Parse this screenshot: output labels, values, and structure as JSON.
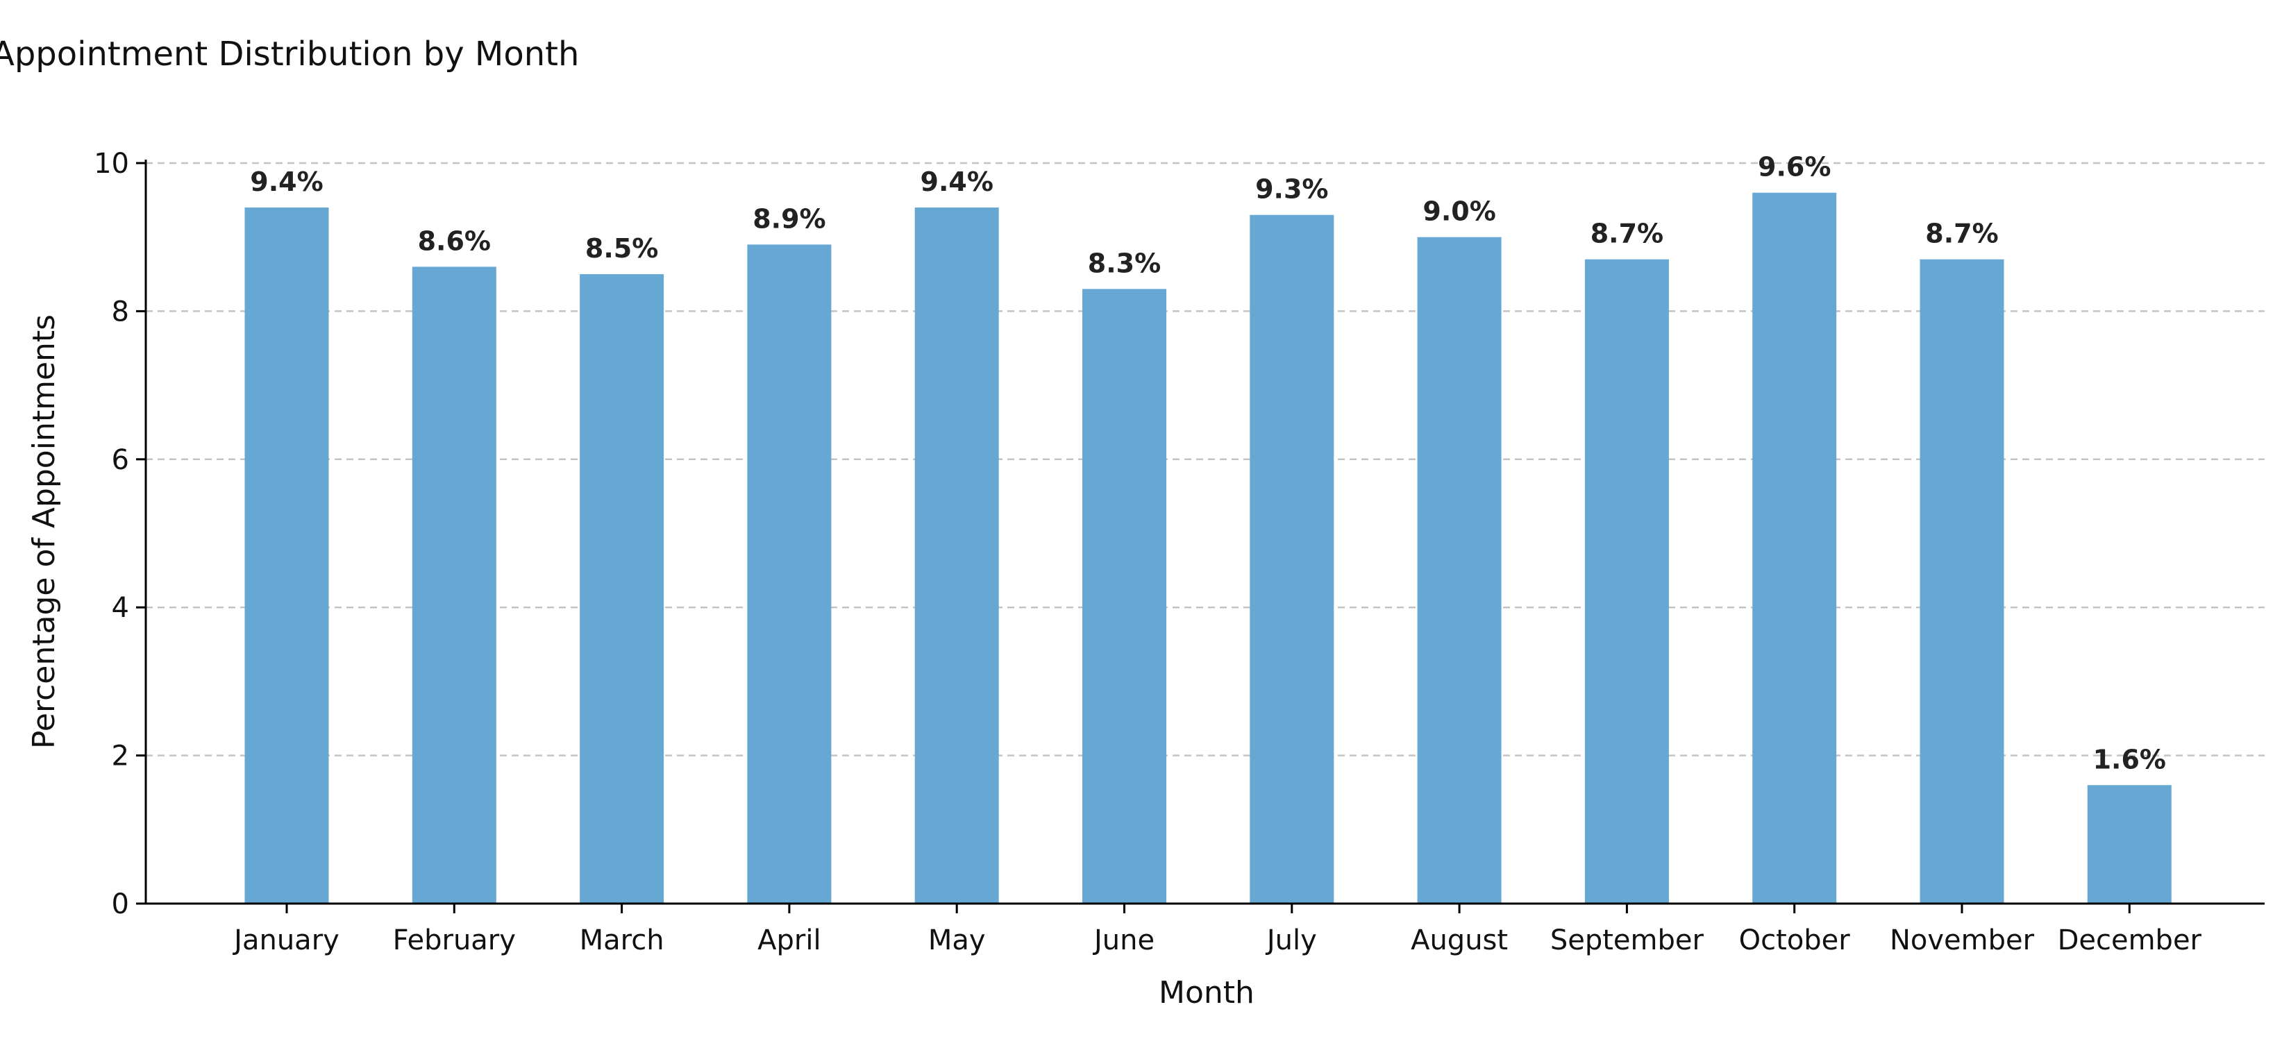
{
  "chart_data": {
    "type": "bar",
    "title": "Appointment Distribution by Month",
    "xlabel": "Month",
    "ylabel": "Percentage of Appointments",
    "categories": [
      "January",
      "February",
      "March",
      "April",
      "May",
      "June",
      "July",
      "August",
      "September",
      "October",
      "November",
      "December"
    ],
    "values": [
      9.4,
      8.6,
      8.5,
      8.9,
      9.4,
      8.3,
      9.3,
      9.0,
      8.7,
      9.6,
      8.7,
      1.6
    ],
    "data_labels": [
      "9.4%",
      "8.6%",
      "8.5%",
      "8.9%",
      "9.4%",
      "8.3%",
      "9.3%",
      "9.0%",
      "8.7%",
      "9.6%",
      "8.7%",
      "1.6%"
    ],
    "ylim": [
      0,
      10
    ],
    "yticks": [
      0,
      2,
      4,
      6,
      8,
      10
    ],
    "grid": "horizontal dashed",
    "bar_color": "#67a7d3"
  }
}
